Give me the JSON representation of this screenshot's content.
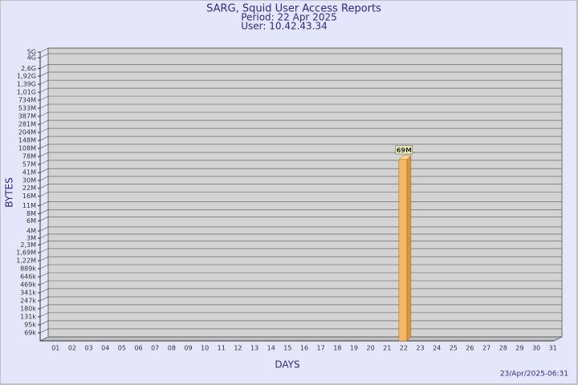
{
  "chart_data": {
    "type": "bar",
    "title": "SARG, Squid User Access Reports",
    "subtitle": "Period: 22 Apr 2025",
    "user": "User: 10.42.43.34",
    "x_label": "DAYS",
    "y_label": "BYTES",
    "timestamp": "23/Apr/2025-06:31",
    "categories": [
      "01",
      "02",
      "03",
      "04",
      "05",
      "06",
      "07",
      "08",
      "09",
      "10",
      "11",
      "12",
      "13",
      "14",
      "15",
      "16",
      "17",
      "18",
      "19",
      "20",
      "21",
      "22",
      "23",
      "24",
      "25",
      "26",
      "27",
      "28",
      "29",
      "30",
      "31"
    ],
    "values": [
      null,
      null,
      null,
      null,
      null,
      null,
      null,
      null,
      null,
      null,
      null,
      null,
      null,
      null,
      null,
      null,
      null,
      null,
      null,
      null,
      null,
      69000000,
      null,
      null,
      null,
      null,
      null,
      null,
      null,
      null,
      null
    ],
    "value_labels": [
      null,
      null,
      null,
      null,
      null,
      null,
      null,
      null,
      null,
      null,
      null,
      null,
      null,
      null,
      null,
      null,
      null,
      null,
      null,
      null,
      null,
      "69M",
      null,
      null,
      null,
      null,
      null,
      null,
      null,
      null,
      null
    ],
    "color": "#f5b865",
    "log_scale": true,
    "grid": true,
    "ylim": [
      50000,
      5000000000
    ],
    "yticks": [
      {
        "value": 5000000000,
        "label": "5G"
      },
      {
        "value": 4000000000,
        "label": "4G"
      },
      {
        "value": 2600000000,
        "label": "2,6G"
      },
      {
        "value": 1920000000,
        "label": "1,92G"
      },
      {
        "value": 1390000000,
        "label": "1,39G"
      },
      {
        "value": 1010000000,
        "label": "1,01G"
      },
      {
        "value": 734000000,
        "label": "734M"
      },
      {
        "value": 533000000,
        "label": "533M"
      },
      {
        "value": 387000000,
        "label": "387M"
      },
      {
        "value": 281000000,
        "label": "281M"
      },
      {
        "value": 204000000,
        "label": "204M"
      },
      {
        "value": 148000000,
        "label": "148M"
      },
      {
        "value": 108000000,
        "label": "108M"
      },
      {
        "value": 78000000,
        "label": "78M"
      },
      {
        "value": 57000000,
        "label": "57M"
      },
      {
        "value": 41000000,
        "label": "41M"
      },
      {
        "value": 30000000,
        "label": "30M"
      },
      {
        "value": 22000000,
        "label": "22M"
      },
      {
        "value": 16000000,
        "label": "16M"
      },
      {
        "value": 11000000,
        "label": "11M"
      },
      {
        "value": 8000000,
        "label": "8M"
      },
      {
        "value": 6000000,
        "label": "6M"
      },
      {
        "value": 4000000,
        "label": "4M"
      },
      {
        "value": 3000000,
        "label": "3M"
      },
      {
        "value": 2300000,
        "label": "2,3M"
      },
      {
        "value": 1690000,
        "label": "1,69M"
      },
      {
        "value": 1220000,
        "label": "1,22M"
      },
      {
        "value": 889000,
        "label": "889k"
      },
      {
        "value": 646000,
        "label": "646k"
      },
      {
        "value": 469000,
        "label": "469k"
      },
      {
        "value": 341000,
        "label": "341k"
      },
      {
        "value": 247000,
        "label": "247k"
      },
      {
        "value": 180000,
        "label": "180k"
      },
      {
        "value": 131000,
        "label": "131k"
      },
      {
        "value": 95000,
        "label": "95k"
      },
      {
        "value": 69000,
        "label": "69k"
      }
    ]
  }
}
